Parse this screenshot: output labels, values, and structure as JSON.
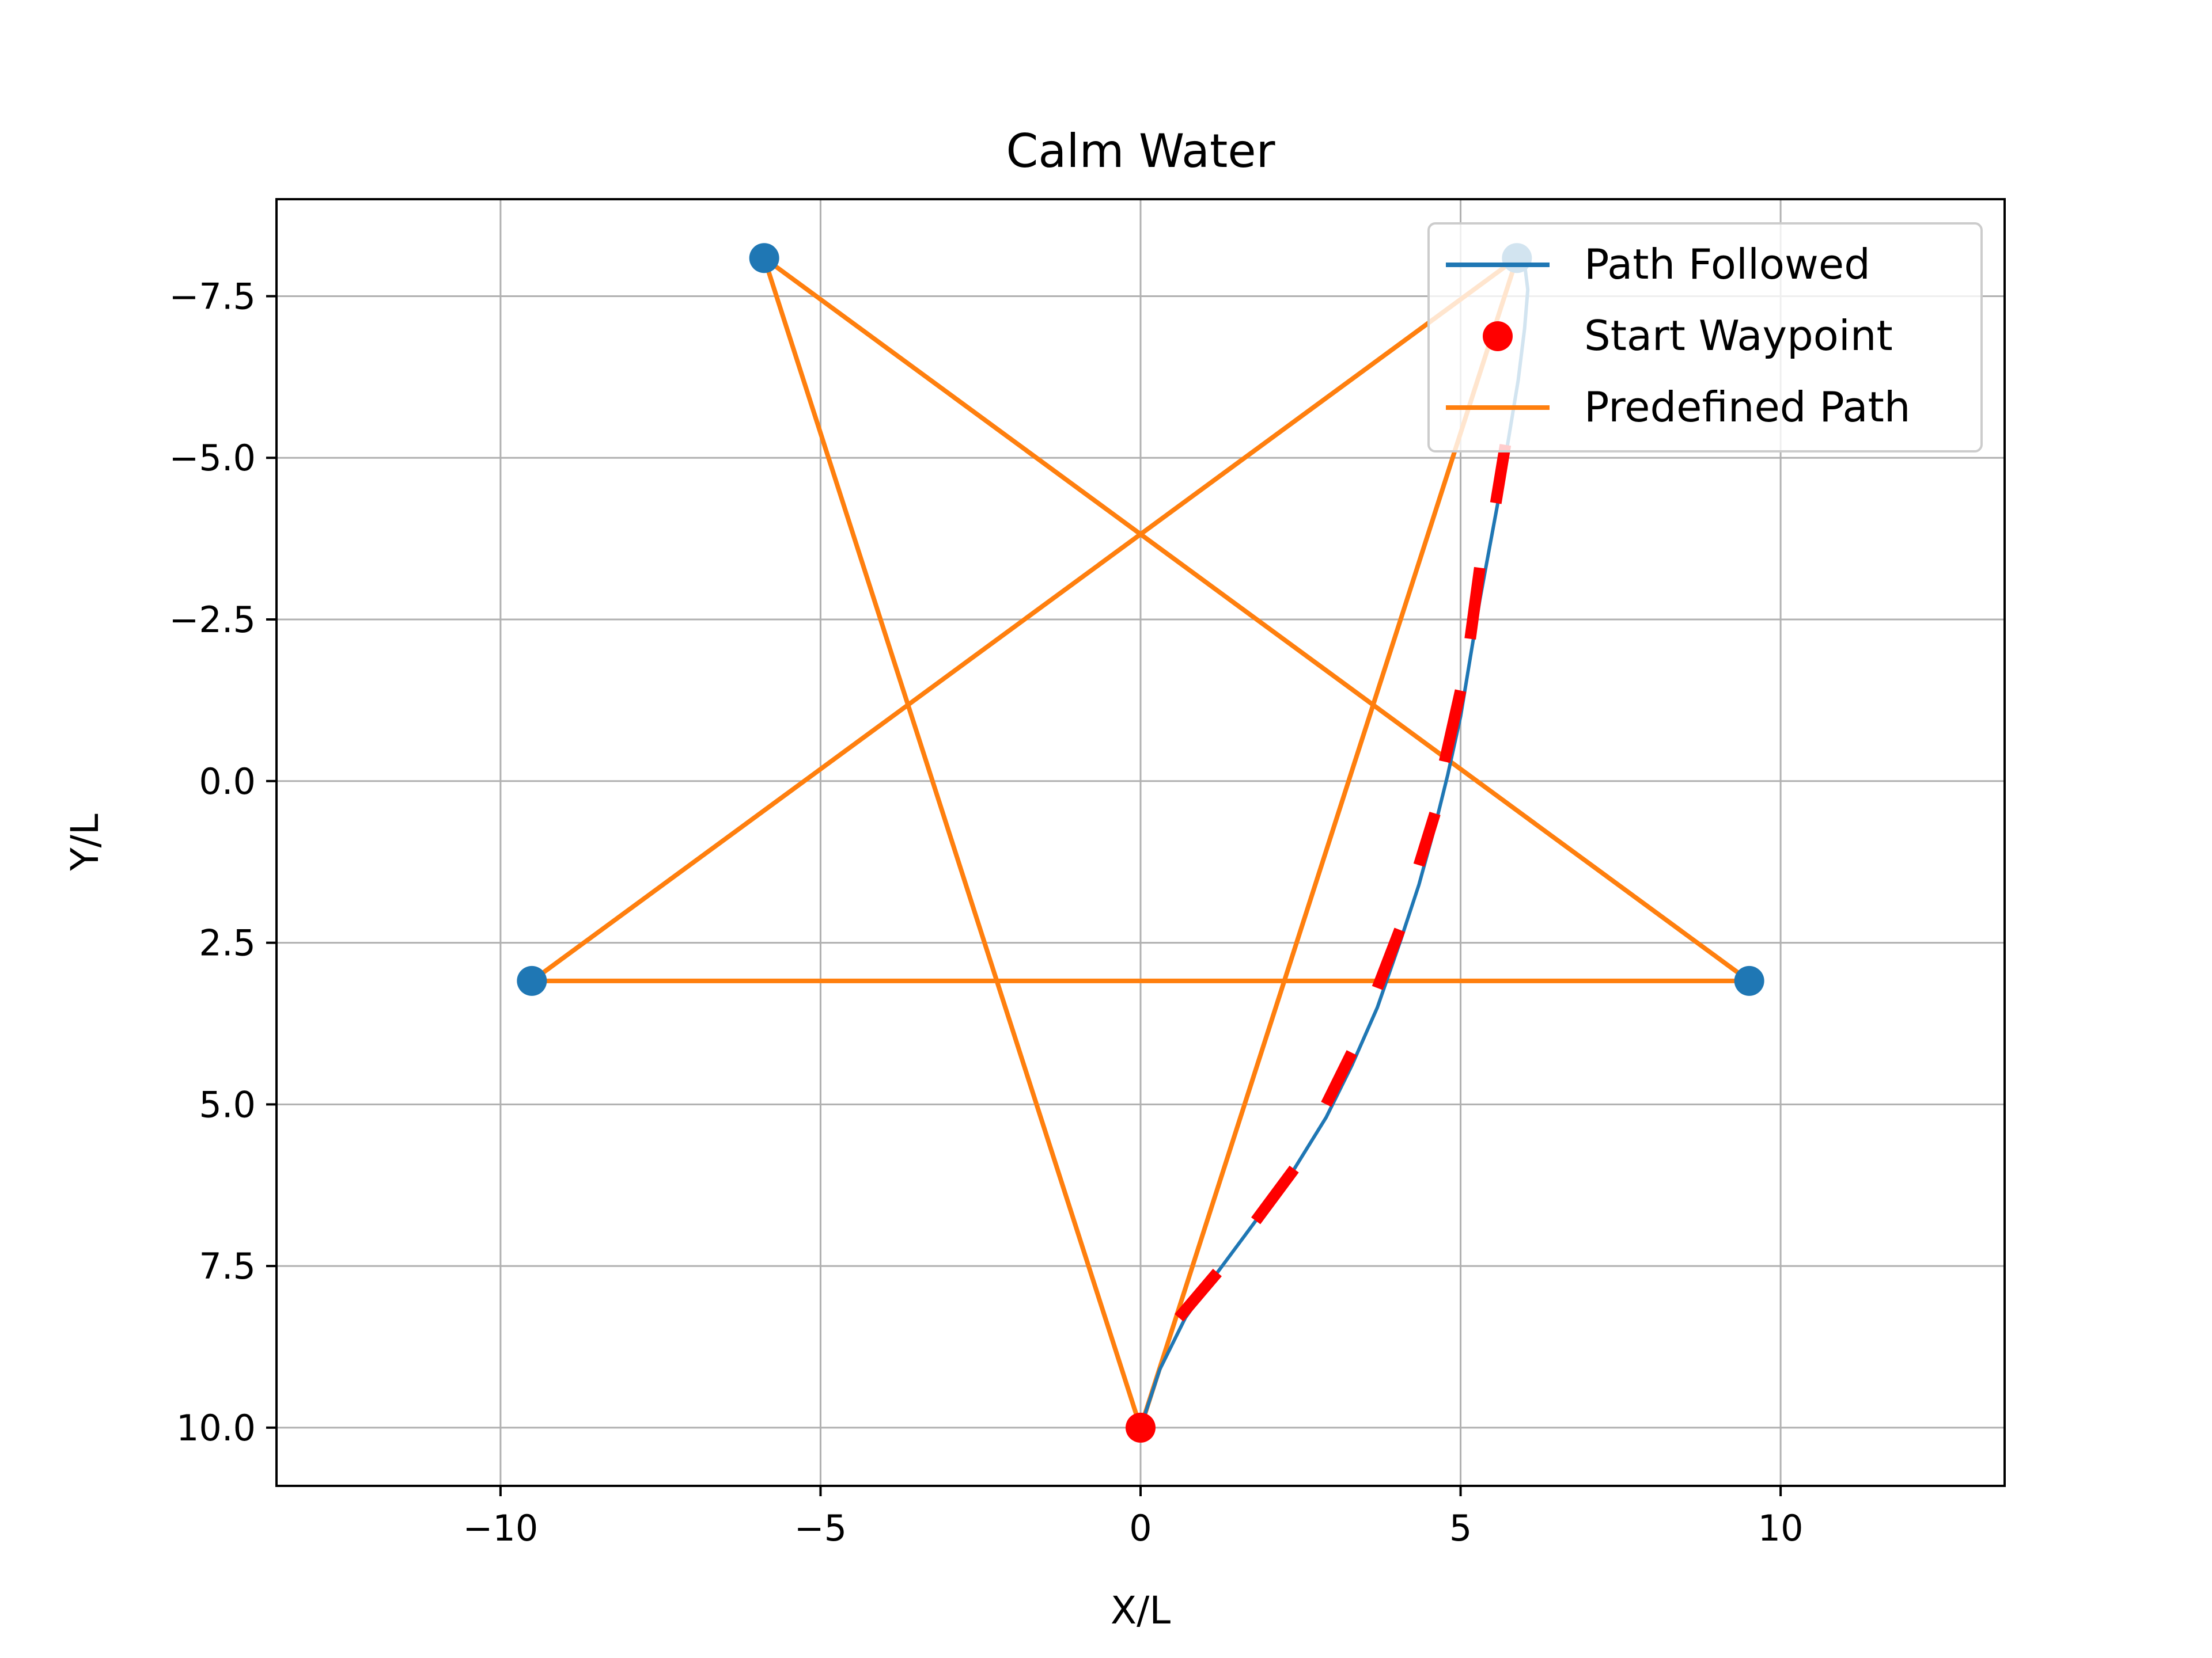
{
  "chart_data": {
    "type": "line",
    "title": "Calm Water",
    "xlabel": "X/L",
    "ylabel": "Y/L",
    "xlim": [
      -13.5,
      13.5
    ],
    "ylim": [
      -9.0,
      10.9
    ],
    "y_inverted": true,
    "grid": true,
    "legend_position": "top-right",
    "x_ticks": [
      -10,
      -5,
      0,
      5,
      10
    ],
    "x_tick_labels": [
      "−10",
      "−5",
      "0",
      "5",
      "10"
    ],
    "y_ticks": [
      -7.5,
      -5.0,
      -2.5,
      0.0,
      2.5,
      5.0,
      7.5,
      10.0
    ],
    "y_tick_labels": [
      "−7.5",
      "−5.0",
      "−2.5",
      "0.0",
      "2.5",
      "5.0",
      "7.5",
      "10.0"
    ],
    "series": [
      {
        "name": "Predefined Path",
        "color": "#ff7f0e",
        "x": [
          0,
          5.88,
          -9.51,
          9.51,
          -5.88,
          0
        ],
        "y": [
          10.0,
          -8.09,
          3.09,
          3.09,
          -8.09,
          10.0
        ]
      },
      {
        "name": "Path Followed",
        "color": "#1f77b4",
        "x": [
          0,
          0.3,
          0.7,
          1.2,
          1.8,
          2.4,
          2.9,
          3.3,
          3.7,
          4.05,
          4.35,
          4.6,
          4.8,
          5.0,
          5.15,
          5.3,
          5.45,
          5.6,
          5.75,
          5.9,
          6.0,
          6.05,
          6.0,
          5.9
        ],
        "y": [
          10.0,
          9.1,
          8.3,
          7.6,
          6.8,
          6.0,
          5.2,
          4.4,
          3.5,
          2.5,
          1.6,
          0.7,
          -0.1,
          -1.0,
          -1.9,
          -2.8,
          -3.6,
          -4.4,
          -5.3,
          -6.2,
          -7.0,
          -7.6,
          -8.0,
          -8.1
        ]
      }
    ],
    "waypoints": {
      "color": "#1f77b4",
      "x": [
        5.88,
        -9.51,
        9.51,
        -5.88
      ],
      "y": [
        -8.09,
        3.09,
        3.09,
        -8.09
      ]
    },
    "start_waypoint": {
      "name": "Start Waypoint",
      "color": "#ff0000",
      "x": 0,
      "y": 10.0
    },
    "heading_markers": {
      "color": "#ff0000",
      "segments": [
        [
          0.6,
          8.3,
          1.2,
          7.6
        ],
        [
          1.8,
          6.8,
          2.4,
          6.0
        ],
        [
          2.9,
          5.0,
          3.3,
          4.2
        ],
        [
          3.7,
          3.2,
          4.05,
          2.3
        ],
        [
          4.35,
          1.3,
          4.6,
          0.5
        ],
        [
          4.75,
          -0.3,
          5.0,
          -1.4
        ],
        [
          5.15,
          -2.2,
          5.3,
          -3.3
        ],
        [
          5.55,
          -4.3,
          5.7,
          -5.2
        ]
      ]
    }
  }
}
